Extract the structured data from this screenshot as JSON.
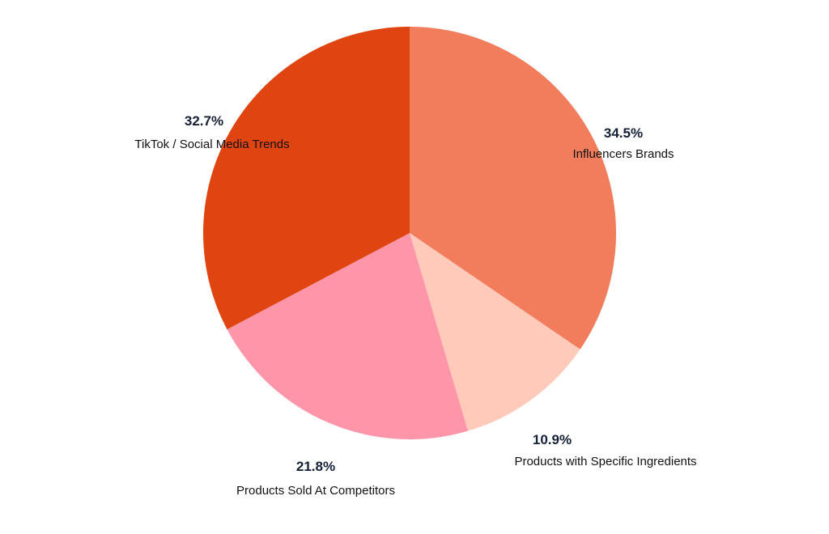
{
  "chart_data": {
    "type": "pie",
    "slices": [
      {
        "label": "Influencers Brands",
        "value": 34.5,
        "display": "34.5%",
        "color": "#F27D5C"
      },
      {
        "label": "Products with Specific Ingredients",
        "value": 10.9,
        "display": "10.9%",
        "color": "#FFCAB9"
      },
      {
        "label": "Products Sold At Competitors",
        "value": 21.8,
        "display": "21.8%",
        "color": "#FF95A8"
      },
      {
        "label": "TikTok / Social Media Trends",
        "value": 32.7,
        "display": "32.7%",
        "color": "#E04410"
      }
    ],
    "start_angle_deg": 0,
    "direction": "clockwise"
  }
}
